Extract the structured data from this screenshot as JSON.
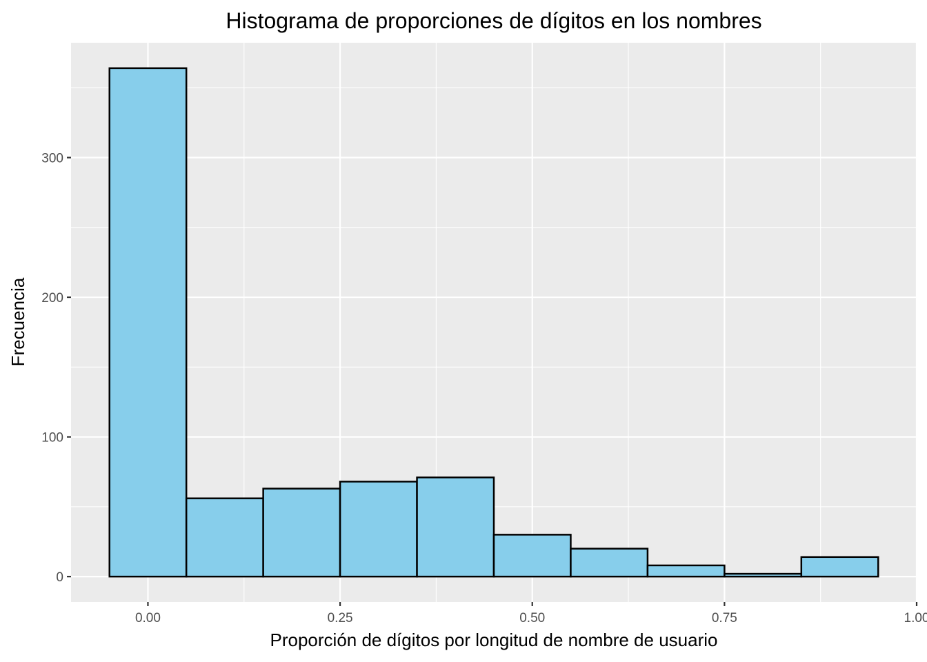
{
  "chart_data": {
    "type": "bar",
    "title": "Histograma de proporciones de dígitos en los nombres",
    "xlabel": "Proporción de dígitos por longitud de nombre de usuario",
    "ylabel": "Frecuencia",
    "bins": [
      {
        "x0": -0.05,
        "x1": 0.05,
        "count": 364
      },
      {
        "x0": 0.05,
        "x1": 0.15,
        "count": 56
      },
      {
        "x0": 0.15,
        "x1": 0.25,
        "count": 63
      },
      {
        "x0": 0.25,
        "x1": 0.35,
        "count": 68
      },
      {
        "x0": 0.35,
        "x1": 0.45,
        "count": 71
      },
      {
        "x0": 0.45,
        "x1": 0.55,
        "count": 30
      },
      {
        "x0": 0.55,
        "x1": 0.65,
        "count": 20
      },
      {
        "x0": 0.65,
        "x1": 0.75,
        "count": 8
      },
      {
        "x0": 0.75,
        "x1": 0.85,
        "count": 2
      },
      {
        "x0": 0.85,
        "x1": 0.95,
        "count": 14
      }
    ],
    "xlim": [
      -0.1,
      1.0
    ],
    "ylim": [
      -18.2,
      382.2
    ],
    "x_ticks": [
      {
        "value": 0.0,
        "label": "0.00"
      },
      {
        "value": 0.25,
        "label": "0.25"
      },
      {
        "value": 0.5,
        "label": "0.50"
      },
      {
        "value": 0.75,
        "label": "0.75"
      },
      {
        "value": 1.0,
        "label": "1.00"
      }
    ],
    "y_ticks": [
      {
        "value": 0,
        "label": "0"
      },
      {
        "value": 100,
        "label": "100"
      },
      {
        "value": 200,
        "label": "200"
      },
      {
        "value": 300,
        "label": "300"
      }
    ],
    "x_minor_ticks": [
      0.125,
      0.375,
      0.625,
      0.875
    ],
    "y_minor_ticks": [
      50,
      150,
      250,
      350
    ],
    "grid": true,
    "colors": {
      "panel_background": "#ebebeb",
      "grid_line": "#ffffff",
      "bar_fill": "#87ceeb",
      "bar_outline": "#000000",
      "tick_mark": "#333333"
    }
  }
}
